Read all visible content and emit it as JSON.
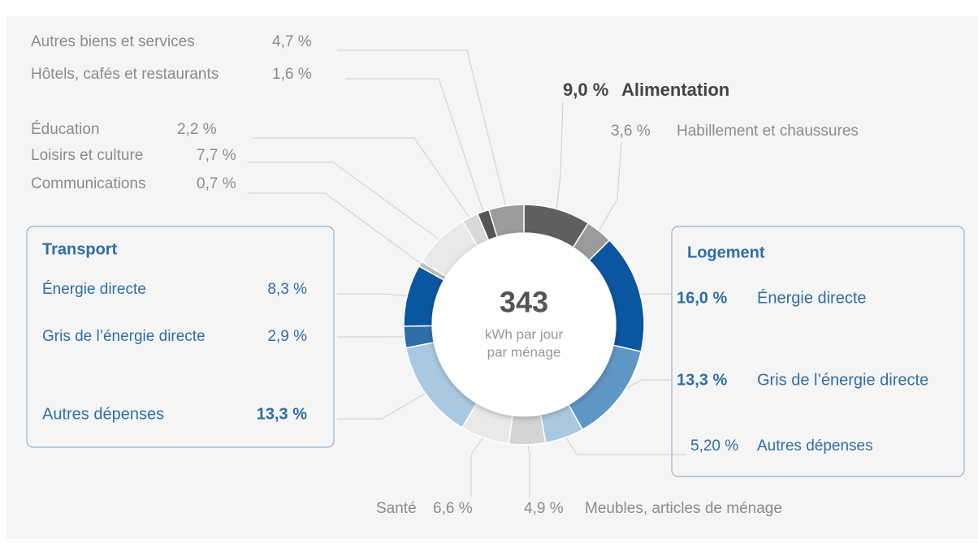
{
  "chart_data": {
    "type": "donut",
    "categories": [
      "Alimentation",
      "Habillement et chaussures",
      "Énergie directe",
      "Gris de l’énergie directe",
      "Autres dépenses",
      "Meubles, articles de ménage",
      "Santé",
      "Autres dépenses",
      "Gris de l’énergie directe",
      "Énergie directe",
      "Communications",
      "Loisirs et culture",
      "Éducation",
      "Hôtels, cafés et restaurants",
      "Autres biens et services"
    ],
    "values": [
      9.0,
      3.6,
      16.0,
      13.3,
      5.2,
      4.9,
      6.6,
      13.3,
      2.9,
      8.3,
      0.7,
      7.7,
      2.2,
      1.6,
      4.7
    ],
    "value_labels": [
      "9,0 %",
      "3,6 %",
      "16,0 %",
      "13,3 %",
      "5,20 %",
      "4,9 %",
      "6,6 %",
      "13,3 %",
      "2,9 %",
      "8,3 %",
      "0,7 %",
      "7,7 %",
      "2,2 %",
      "1,6 %",
      "4,7 %"
    ],
    "colors": [
      "#5f5f5f",
      "#9b9b9b",
      "#0a56a0",
      "#5f97c5",
      "#a9c9e3",
      "#d4d4d4",
      "#e9e9e9",
      "#a9c9e3",
      "#2e6ea8",
      "#0a56a0",
      "#bdbdbd",
      "#e9e9e9",
      "#d9d9d9",
      "#555555",
      "#9b9b9b"
    ],
    "groups": [
      {
        "title": "Transport"
      },
      {
        "title": "Logement"
      }
    ],
    "center": {
      "value": 343,
      "lines": [
        "kWh par jour",
        "par ménage"
      ]
    }
  }
}
